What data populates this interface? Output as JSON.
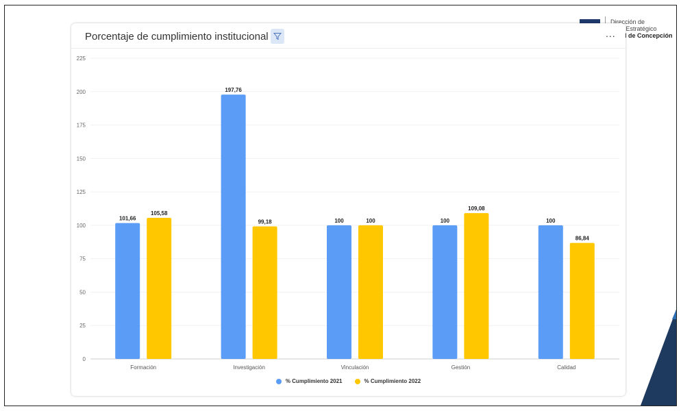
{
  "institution": {
    "line1": "Dirección de",
    "line2": "rrollo Estratégico",
    "line3": "sidad de Concepción"
  },
  "card": {
    "title": "Porcentaje de cumplimiento institucional",
    "more_label": "...",
    "filter_icon": "filter-icon"
  },
  "colors": {
    "series_2021": "#5b9cf7",
    "series_2022": "#ffc700",
    "corner_dark": "#1f3a5f",
    "corner_accent": "#2d6fb5"
  },
  "chart_data": {
    "type": "bar",
    "title": "Porcentaje de cumplimiento institucional",
    "xlabel": "",
    "ylabel": "",
    "categories": [
      "Formación",
      "Investigación",
      "Vinculación",
      "Gestión",
      "Calidad"
    ],
    "series": [
      {
        "name": "% Cumplimiento 2021",
        "values": [
          101.66,
          197.76,
          100,
          100,
          100
        ],
        "labels": [
          "101,66",
          "197,76",
          "100",
          "100",
          "100"
        ]
      },
      {
        "name": "% Cumplimiento 2022",
        "values": [
          105.58,
          99.18,
          100,
          109.08,
          86.84
        ],
        "labels": [
          "105,58",
          "99,18",
          "100",
          "109,08",
          "86,84"
        ]
      }
    ],
    "ylim": [
      0,
      225
    ],
    "yticks": [
      0,
      25,
      50,
      75,
      100,
      125,
      150,
      175,
      200,
      225
    ],
    "grid": true,
    "legend": "bottom"
  }
}
